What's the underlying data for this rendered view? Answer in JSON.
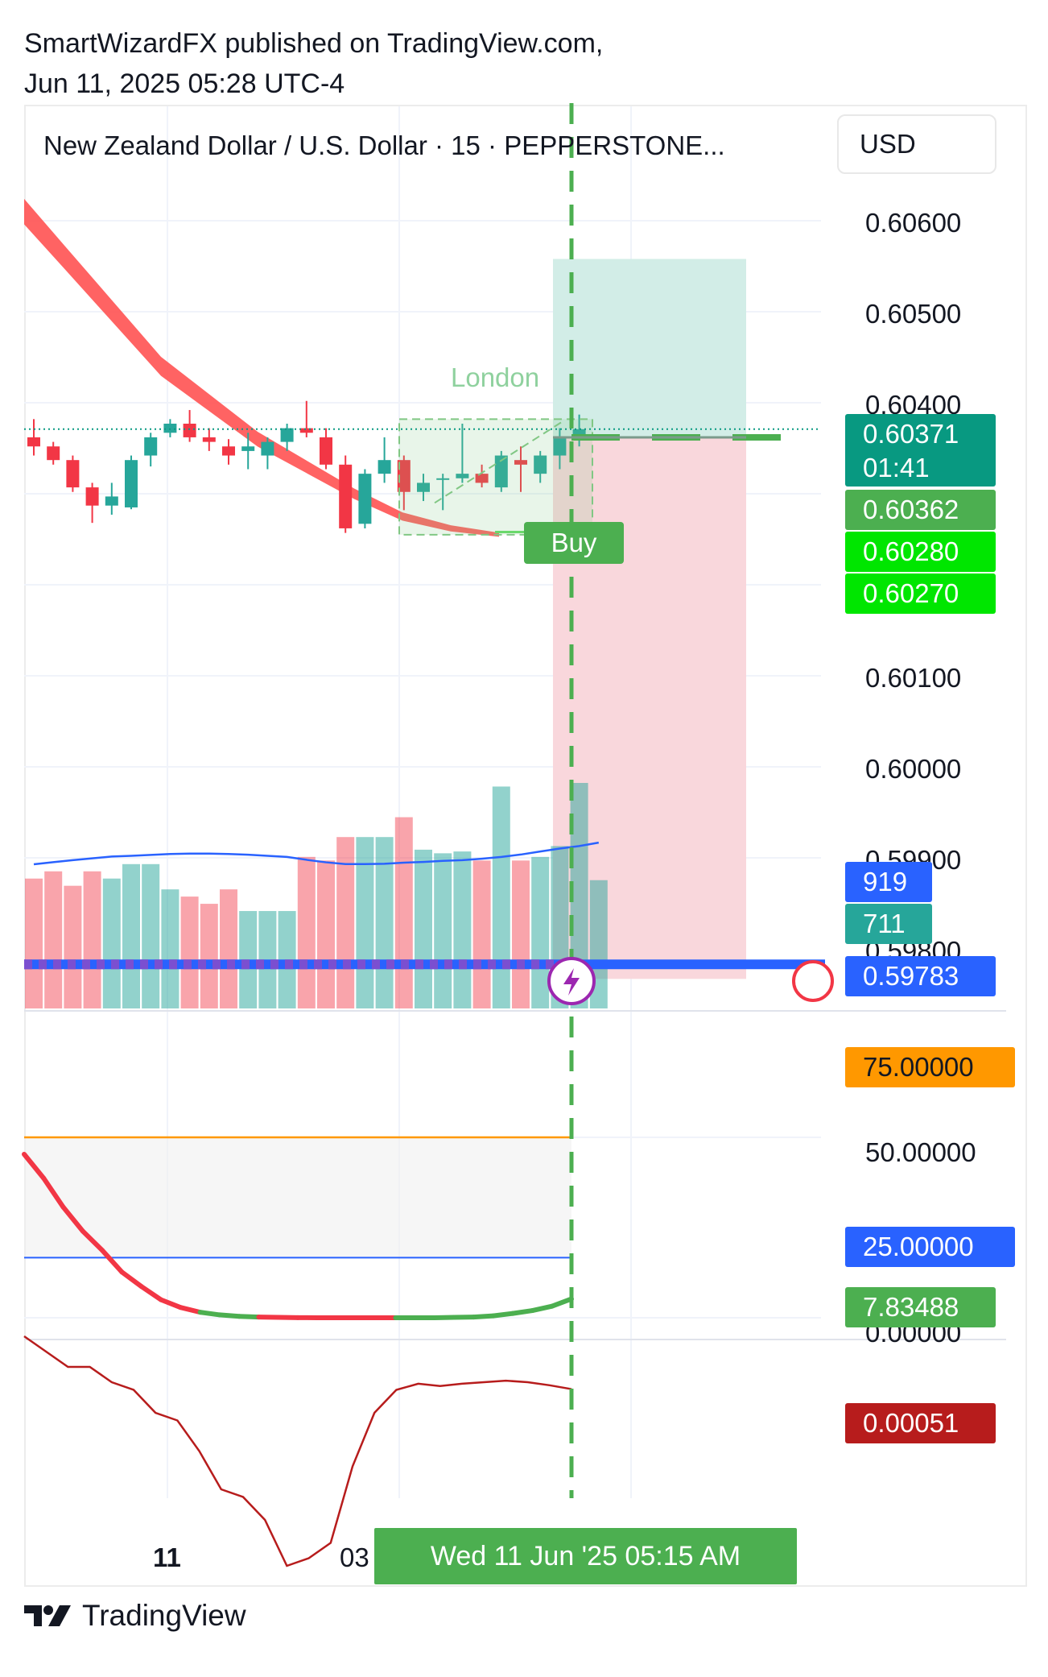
{
  "header": {
    "line1": "SmartWizardFX published on TradingView.com,",
    "line2": "Jun 11, 2025 05:28 UTC-4"
  },
  "symbol_title": "New Zealand Dollar / U.S. Dollar · 15 · PEPPERSTONE...",
  "currency_button": "USD",
  "footer_logo_text": "TradingView",
  "time_axis": {
    "ticks": [
      "11",
      "03"
    ],
    "crosshair_label": "Wed 11 Jun '25   05:15 AM"
  },
  "price_labels": {
    "last": {
      "price": "0.60371",
      "countdown": "01:41",
      "color": "#089981"
    },
    "l2": {
      "text": "0.60362",
      "color": "#4caf50"
    },
    "l3": {
      "text": "0.60280",
      "color": "#00e600"
    },
    "l4": {
      "text": "0.60270",
      "color": "#00e600"
    },
    "vol_ma": {
      "text": "919",
      "color": "#2962ff"
    },
    "vol": {
      "text": "711",
      "color": "#26a69a"
    },
    "level": {
      "text": "0.59783",
      "color": "#2962ff"
    },
    "ob": {
      "text": "75.00000",
      "color": "#ff9800"
    },
    "os": {
      "text": "25.00000",
      "color": "#2962ff"
    },
    "osc": {
      "text": "7.83488",
      "color": "#4caf50"
    },
    "macd": {
      "text": "0.00051",
      "color": "#b71c1c"
    }
  },
  "annotations": {
    "session": "London",
    "signal": "Buy"
  },
  "colors": {
    "up": "#26a69a",
    "down": "#f23645",
    "cloud": "#ff5252",
    "profit_zone": "#d2ede7",
    "loss_zone": "#f9d7dc",
    "crosshair": "#4caf50"
  },
  "chart_data": [
    {
      "type": "candlestick",
      "title": "New Zealand Dollar / U.S. Dollar · 15 · PEPPERSTONE...",
      "ylabel": "USD",
      "y_ticks": [
        "0.60600",
        "0.60500",
        "0.60400",
        "0.60100",
        "0.60000",
        "0.59900",
        "0.59800"
      ],
      "ylim": [
        0.5974,
        0.6075
      ],
      "x_ticks": [
        "11",
        "03"
      ],
      "candles": [
        {
          "o": 0.60362,
          "h": 0.60382,
          "l": 0.60342,
          "c": 0.60352
        },
        {
          "o": 0.60352,
          "h": 0.60357,
          "l": 0.60332,
          "c": 0.60337
        },
        {
          "o": 0.60337,
          "h": 0.60342,
          "l": 0.60302,
          "c": 0.60307
        },
        {
          "o": 0.60307,
          "h": 0.60312,
          "l": 0.60268,
          "c": 0.60287
        },
        {
          "o": 0.60287,
          "h": 0.60312,
          "l": 0.60277,
          "c": 0.60297
        },
        {
          "o": 0.60285,
          "h": 0.60342,
          "l": 0.60283,
          "c": 0.60337
        },
        {
          "o": 0.60342,
          "h": 0.60367,
          "l": 0.6033,
          "c": 0.60362
        },
        {
          "o": 0.60367,
          "h": 0.60382,
          "l": 0.60362,
          "c": 0.60377
        },
        {
          "o": 0.60377,
          "h": 0.60392,
          "l": 0.60357,
          "c": 0.60362
        },
        {
          "o": 0.60362,
          "h": 0.60372,
          "l": 0.60347,
          "c": 0.60357
        },
        {
          "o": 0.60352,
          "h": 0.6036,
          "l": 0.60332,
          "c": 0.60342
        },
        {
          "o": 0.60347,
          "h": 0.60367,
          "l": 0.60327,
          "c": 0.60352
        },
        {
          "o": 0.60342,
          "h": 0.60362,
          "l": 0.60327,
          "c": 0.60357
        },
        {
          "o": 0.60357,
          "h": 0.60377,
          "l": 0.60347,
          "c": 0.60372
        },
        {
          "o": 0.60372,
          "h": 0.60402,
          "l": 0.60362,
          "c": 0.60367
        },
        {
          "o": 0.60362,
          "h": 0.60372,
          "l": 0.60327,
          "c": 0.60332
        },
        {
          "o": 0.60332,
          "h": 0.60342,
          "l": 0.60257,
          "c": 0.60262
        },
        {
          "o": 0.60267,
          "h": 0.60327,
          "l": 0.60262,
          "c": 0.60322
        },
        {
          "o": 0.60322,
          "h": 0.60362,
          "l": 0.60312,
          "c": 0.60337
        },
        {
          "o": 0.60337,
          "h": 0.60342,
          "l": 0.60282,
          "c": 0.60302
        },
        {
          "o": 0.60302,
          "h": 0.60322,
          "l": 0.60292,
          "c": 0.60312
        },
        {
          "o": 0.60317,
          "h": 0.60322,
          "l": 0.60282,
          "c": 0.60317
        },
        {
          "o": 0.60317,
          "h": 0.60377,
          "l": 0.60312,
          "c": 0.60322
        },
        {
          "o": 0.60322,
          "h": 0.60332,
          "l": 0.60307,
          "c": 0.60312
        },
        {
          "o": 0.60307,
          "h": 0.60347,
          "l": 0.60302,
          "c": 0.60342
        },
        {
          "o": 0.60337,
          "h": 0.60352,
          "l": 0.60302,
          "c": 0.60332
        },
        {
          "o": 0.60322,
          "h": 0.60347,
          "l": 0.60312,
          "c": 0.60342
        },
        {
          "o": 0.60342,
          "h": 0.60372,
          "l": 0.60327,
          "c": 0.60362
        },
        {
          "o": 0.60362,
          "h": 0.60387,
          "l": 0.60352,
          "c": 0.60371
        }
      ],
      "last_price": 0.60371,
      "position": {
        "entry": 0.60362,
        "target": 0.60558,
        "stop": 0.59767
      },
      "signal_box": {
        "top": 0.60382,
        "bottom": 0.60255
      }
    },
    {
      "type": "bar",
      "title": "Volume",
      "values": [
        720,
        760,
        680,
        760,
        720,
        800,
        800,
        660,
        620,
        580,
        660,
        540,
        540,
        540,
        840,
        820,
        950,
        950,
        950,
        1060,
        880,
        860,
        870,
        820,
        1230,
        820,
        840,
        900,
        1250,
        711
      ],
      "moving_average": [
        799,
        811,
        822,
        832,
        842,
        846,
        851,
        856,
        858,
        858,
        856,
        852,
        846,
        840,
        824,
        810,
        800,
        800,
        802,
        808,
        812,
        818,
        822,
        830,
        840,
        853,
        870,
        886,
        900,
        919
      ],
      "level_line": 0.59783
    },
    {
      "type": "line",
      "title": "Oscillator",
      "y_ticks": [
        "75.00000",
        "50.00000",
        "25.00000",
        "0.00000"
      ],
      "ylim": [
        0,
        75
      ],
      "values": [
        68,
        58,
        46,
        36,
        28,
        19,
        13,
        7.5,
        4.3,
        2.3,
        1.2,
        0.6,
        0.3,
        0.15,
        0.05,
        0,
        0,
        0,
        0,
        0,
        0,
        0,
        0.15,
        0.3,
        0.8,
        1.8,
        3,
        4.8,
        7.83
      ],
      "overbought": 75,
      "oversold": 25
    },
    {
      "type": "line",
      "title": "MACD",
      "values": [
        0.0012,
        0.001,
        0.0008,
        0.0008,
        0.0006,
        0.0005,
        0.0002,
        0.0001,
        -0.0003,
        -0.0008,
        -0.0009,
        -0.0012,
        -0.0018,
        -0.0017,
        -0.0015,
        -0.0005,
        0.0002,
        0.0005,
        0.00058,
        0.00055,
        0.00058,
        0.0006,
        0.00062,
        0.0006,
        0.00056,
        0.00051
      ],
      "last": 0.00051
    }
  ]
}
